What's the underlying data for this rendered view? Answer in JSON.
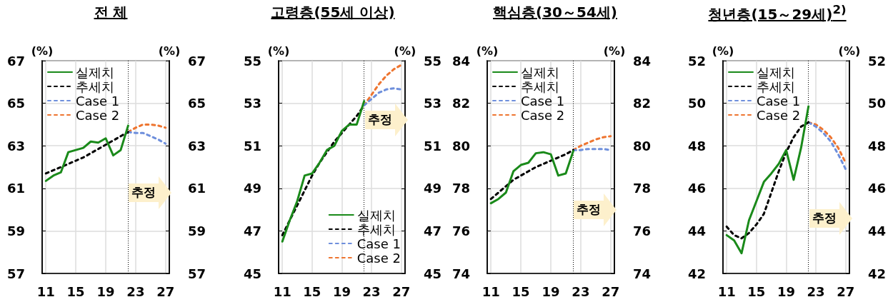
{
  "chart_data": [
    {
      "type": "line",
      "title": "전  체",
      "ylabel": "(%)",
      "y2label": "(%)",
      "xlim": [
        10.5,
        27.5
      ],
      "xticks": [
        11,
        15,
        19,
        23,
        27
      ],
      "ylim": [
        57,
        67
      ],
      "yticks": [
        57,
        59,
        61,
        63,
        65,
        67
      ],
      "y2lim": [
        57,
        67
      ],
      "y2ticks": [
        57,
        59,
        61,
        63,
        65,
        67
      ],
      "grid": true,
      "legend": "top left",
      "marker": "none",
      "ref_lines": [
        {
          "axis": "x",
          "value": 22,
          "label": "추정",
          "color": "#000000",
          "line_style": "dotted"
        }
      ],
      "series": [
        {
          "name": "실제치",
          "color": "#1a8a1a",
          "line_style": "solid",
          "x": [
            11,
            12,
            13,
            14,
            15,
            16,
            17,
            18,
            19,
            20,
            21,
            22
          ],
          "values": [
            61.35,
            61.6,
            61.75,
            62.7,
            62.8,
            62.9,
            63.2,
            63.15,
            63.35,
            62.55,
            62.8,
            63.95
          ]
        },
        {
          "name": "추세치",
          "color": "#000000",
          "line_style": "dashed",
          "x": [
            11,
            12,
            13,
            14,
            15,
            16,
            17,
            18,
            19,
            20,
            21,
            22
          ],
          "values": [
            61.7,
            61.85,
            62.0,
            62.15,
            62.3,
            62.45,
            62.65,
            62.85,
            63.05,
            63.25,
            63.45,
            63.65
          ]
        },
        {
          "name": "Case 1",
          "color": "#6e8fdc",
          "line_style": "dashed",
          "x": [
            22,
            23,
            24,
            25,
            26,
            27
          ],
          "values": [
            63.65,
            63.6,
            63.6,
            63.45,
            63.3,
            63.1
          ]
        },
        {
          "name": "Case 2",
          "color": "#ee7530",
          "line_style": "dashed",
          "x": [
            22,
            23,
            24,
            25,
            26,
            27
          ],
          "values": [
            63.65,
            63.85,
            64.0,
            64.0,
            63.95,
            63.85
          ]
        }
      ]
    },
    {
      "type": "line",
      "title": "고령층(55세 이상)",
      "ylabel": "(%)",
      "y2label": "(%)",
      "xlim": [
        10.5,
        27.5
      ],
      "xticks": [
        11,
        15,
        19,
        23,
        27
      ],
      "ylim": [
        45,
        55
      ],
      "yticks": [
        45,
        47,
        49,
        51,
        53,
        55
      ],
      "y2lim": [
        45,
        55
      ],
      "y2ticks": [
        45,
        47,
        49,
        51,
        53,
        55
      ],
      "grid": true,
      "legend": "bottom right",
      "marker": "none",
      "ref_lines": [
        {
          "axis": "x",
          "value": 22,
          "label": "추정",
          "color": "#000000",
          "line_style": "dotted"
        }
      ],
      "series": [
        {
          "name": "실제치",
          "color": "#1a8a1a",
          "line_style": "solid",
          "x": [
            11,
            12,
            13,
            14,
            15,
            16,
            17,
            18,
            19,
            20,
            21,
            22
          ],
          "values": [
            46.5,
            47.5,
            48.4,
            49.6,
            49.7,
            50.2,
            50.8,
            51.0,
            51.7,
            52.0,
            52.0,
            53.1
          ]
        },
        {
          "name": "추세치",
          "color": "#000000",
          "line_style": "dashed",
          "x": [
            11,
            12,
            13,
            14,
            15,
            16,
            17,
            18,
            19,
            20,
            21,
            22
          ],
          "values": [
            46.8,
            47.5,
            48.2,
            48.9,
            49.6,
            50.2,
            50.7,
            51.2,
            51.6,
            52.0,
            52.4,
            52.9
          ]
        },
        {
          "name": "Case 1",
          "color": "#6e8fdc",
          "line_style": "dashed",
          "x": [
            22,
            23,
            24,
            25,
            26,
            27
          ],
          "values": [
            52.9,
            53.2,
            53.5,
            53.65,
            53.7,
            53.65
          ]
        },
        {
          "name": "Case 2",
          "color": "#ee7530",
          "line_style": "dashed",
          "x": [
            22,
            23,
            24,
            25,
            26,
            27
          ],
          "values": [
            52.9,
            53.4,
            53.9,
            54.3,
            54.6,
            54.8
          ]
        }
      ]
    },
    {
      "type": "line",
      "title": "핵심층(30～54세)",
      "ylabel": "(%)",
      "y2label": "(%)",
      "xlim": [
        10.5,
        27.5
      ],
      "xticks": [
        11,
        15,
        19,
        23,
        27
      ],
      "ylim": [
        74,
        84
      ],
      "yticks": [
        74,
        76,
        78,
        80,
        82,
        84
      ],
      "y2lim": [
        74,
        84
      ],
      "y2ticks": [
        74,
        76,
        78,
        80,
        82,
        84
      ],
      "grid": true,
      "legend": "top left",
      "marker": "none",
      "ref_lines": [
        {
          "axis": "x",
          "value": 22,
          "label": "추정",
          "color": "#000000",
          "line_style": "dotted"
        }
      ],
      "series": [
        {
          "name": "실제치",
          "color": "#1a8a1a",
          "line_style": "solid",
          "x": [
            11,
            12,
            13,
            14,
            15,
            16,
            17,
            18,
            19,
            20,
            21,
            22
          ],
          "values": [
            77.3,
            77.5,
            77.8,
            78.8,
            79.1,
            79.2,
            79.65,
            79.7,
            79.6,
            78.6,
            78.7,
            79.75
          ]
        },
        {
          "name": "추세치",
          "color": "#000000",
          "line_style": "dashed",
          "x": [
            11,
            12,
            13,
            14,
            15,
            16,
            17,
            18,
            19,
            20,
            21,
            22
          ],
          "values": [
            77.5,
            77.8,
            78.1,
            78.4,
            78.6,
            78.8,
            79.0,
            79.15,
            79.3,
            79.45,
            79.6,
            79.8
          ]
        },
        {
          "name": "Case 1",
          "color": "#6e8fdc",
          "line_style": "dashed",
          "x": [
            22,
            23,
            24,
            25,
            26,
            27
          ],
          "values": [
            79.8,
            79.8,
            79.85,
            79.85,
            79.85,
            79.8
          ]
        },
        {
          "name": "Case 2",
          "color": "#ee7530",
          "line_style": "dashed",
          "x": [
            22,
            23,
            24,
            25,
            26,
            27
          ],
          "values": [
            79.8,
            80.0,
            80.15,
            80.3,
            80.4,
            80.45
          ]
        }
      ]
    },
    {
      "type": "line",
      "title": "청년층(15～29세)$^{2)}$",
      "ylabel": "(%)",
      "y2label": "(%)",
      "xlim": [
        10.5,
        27.5
      ],
      "xticks": [
        11,
        15,
        19,
        23,
        27
      ],
      "ylim": [
        42,
        52
      ],
      "yticks": [
        42,
        44,
        46,
        48,
        50,
        52
      ],
      "y2lim": [
        42,
        52
      ],
      "y2ticks": [
        42,
        44,
        46,
        48,
        50,
        52
      ],
      "grid": true,
      "legend": "top left",
      "marker": "none",
      "ref_lines": [
        {
          "axis": "x",
          "value": 22,
          "label": "추정",
          "color": "#000000",
          "line_style": "dotted"
        }
      ],
      "series": [
        {
          "name": "실제치",
          "color": "#1a8a1a",
          "line_style": "solid",
          "x": [
            11,
            12,
            13,
            14,
            15,
            16,
            17,
            18,
            19,
            20,
            21,
            22
          ],
          "values": [
            43.8,
            43.55,
            42.95,
            44.5,
            45.4,
            46.3,
            46.7,
            47.15,
            47.8,
            46.4,
            47.9,
            49.85
          ]
        },
        {
          "name": "추세치",
          "color": "#000000",
          "line_style": "dashed",
          "x": [
            11,
            12,
            13,
            14,
            15,
            16,
            17,
            18,
            19,
            20,
            21,
            22
          ],
          "values": [
            44.2,
            43.8,
            43.65,
            43.9,
            44.3,
            44.8,
            45.8,
            46.8,
            47.7,
            48.4,
            48.9,
            49.1
          ]
        },
        {
          "name": "Case 1",
          "color": "#6e8fdc",
          "line_style": "dashed",
          "x": [
            22,
            23,
            24,
            25,
            26,
            27
          ],
          "values": [
            49.1,
            48.9,
            48.6,
            48.2,
            47.6,
            46.9
          ]
        },
        {
          "name": "Case 2",
          "color": "#ee7530",
          "line_style": "dashed",
          "x": [
            22,
            23,
            24,
            25,
            26,
            27
          ],
          "values": [
            49.1,
            49.0,
            48.75,
            48.4,
            47.9,
            47.2
          ]
        }
      ]
    }
  ]
}
